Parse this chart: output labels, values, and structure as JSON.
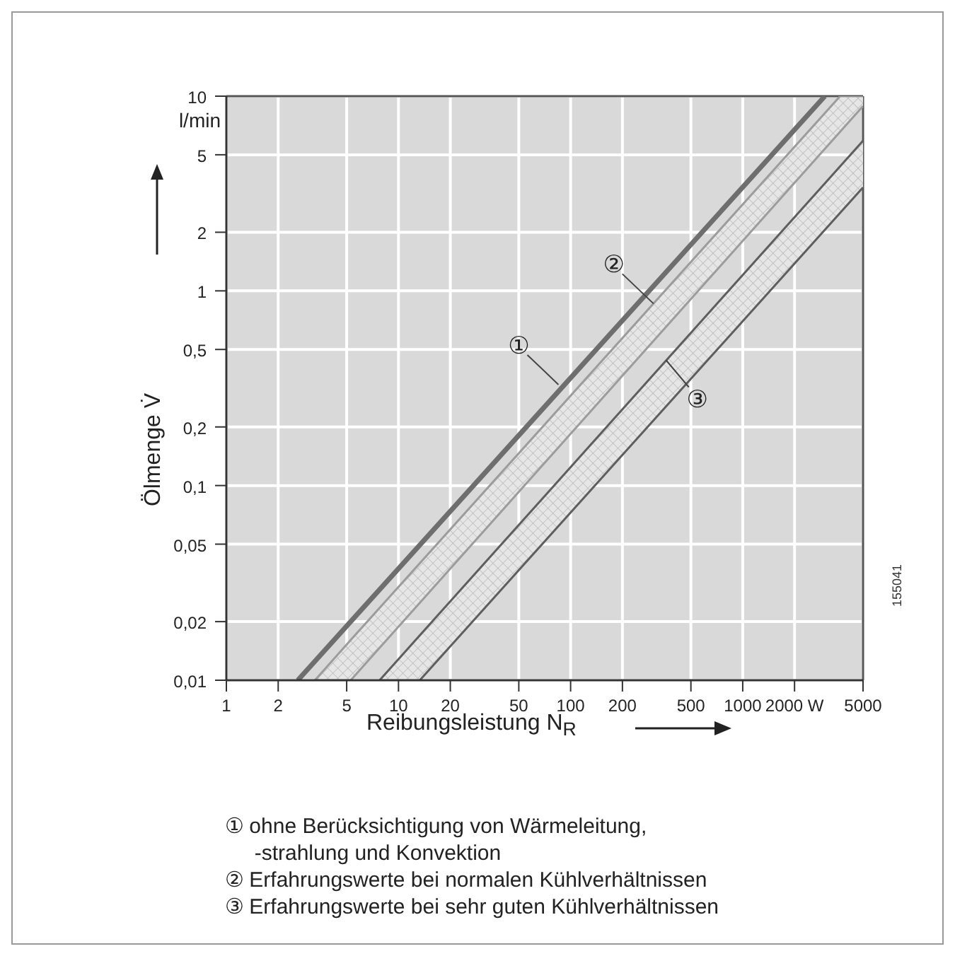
{
  "chart_data": {
    "type": "line",
    "xlabel": "Reibungsleistung N$_{R}$",
    "ylabel": "Ölmenge V̇",
    "log": "xy",
    "grid": true,
    "xlim": [
      1,
      5000
    ],
    "xticks": [
      1,
      2,
      5,
      10,
      20,
      50,
      100,
      200,
      500,
      1000,
      {
        "value": 2000,
        "label": "2000 W"
      },
      5000
    ],
    "ylim": [
      0.01,
      10
    ],
    "yticks": [
      {
        "value": 0.01,
        "label": "0,01"
      },
      {
        "value": 0.02,
        "label": "0,02"
      },
      {
        "value": 0.05,
        "label": "0,05"
      },
      {
        "value": 0.1,
        "label": "0,1"
      },
      {
        "value": 0.2,
        "label": "0,2"
      },
      {
        "value": 0.5,
        "label": "0,5"
      },
      1,
      2,
      5,
      10
    ],
    "series": [
      {
        "type": "line",
        "x": [
          2.6,
          3000
        ],
        "values": [
          0.01,
          10
        ],
        "color": "#6e6e6e"
      },
      {
        "type": "line",
        "x": [
          3.27,
          5.28,
          3680,
          5000
        ],
        "values": [
          0.01,
          0.0161,
          10,
          10
        ],
        "lower": [
          0.01,
          0.01,
          6.5,
          8.9
        ],
        "upper": [
          0.01,
          0.0161,
          10,
          10
        ],
        "color": "#9c9c9c"
      },
      {
        "type": "line",
        "x": [
          5.28,
          5000
        ],
        "values": [
          0.01,
          8.9
        ],
        "color": "#9c9c9c"
      },
      {
        "type": "line",
        "x": [
          7.77,
          13.3,
          5000
        ],
        "values": [
          0.01,
          0.017,
          5.9
        ],
        "lower": [
          0.01,
          0.01,
          3.4
        ],
        "upper": [
          0.01,
          0.017,
          5.9
        ],
        "color": "#5e5e5e"
      },
      {
        "type": "line",
        "x": [
          13.3,
          5000
        ],
        "values": [
          0.01,
          3.4
        ],
        "color": "#5e5e5e"
      }
    ],
    "annotations": [
      {
        "text": "①",
        "x": 85,
        "y": 0.33
      },
      {
        "text": "②",
        "x": 303,
        "y": 0.86
      },
      {
        "text": "③",
        "x": 359,
        "y": 0.44
      },
      "155041",
      "l/min",
      "① ohne Berücksichtigung von Wärmeleitung,\n     -strahlung und Konvektion",
      "② Erfahrungswerte bei normalen Kühlverhältnissen",
      "③ Erfahrungswerte bei sehr guten Kühlverhältnissen"
    ]
  }
}
